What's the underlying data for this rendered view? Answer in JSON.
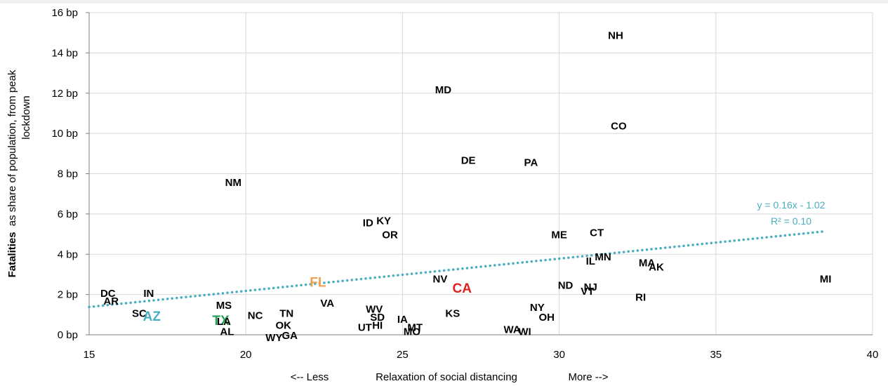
{
  "chart_data": {
    "type": "scatter",
    "xlim": [
      15,
      40
    ],
    "ylim": [
      0,
      16
    ],
    "x_ticks": [
      "15",
      "20",
      "25",
      "30",
      "35",
      "40"
    ],
    "y_ticks": [
      "0 bp",
      "2 bp",
      "4 bp",
      "6 bp",
      "8 bp",
      "10 bp",
      "12 bp",
      "14 bp",
      "16 bp"
    ],
    "grid": true,
    "ylabel": {
      "bold": "Fatalities",
      "rest": "as share of population, from peak",
      "line2": "lockdown"
    },
    "xlabel": {
      "left": "<-- Less",
      "center": "Relaxation of social distancing",
      "right": "More -->"
    },
    "trendline": {
      "slope": 0.16,
      "intercept": -1.02,
      "x_range": [
        15,
        38.5
      ],
      "equation": "y = 0.16x - 1.02",
      "r2": "R² = 0.10",
      "color": "#4aaec0",
      "style": "dotted"
    },
    "points": [
      {
        "label": "NH",
        "x": 31.8,
        "y": 14.9
      },
      {
        "label": "MD",
        "x": 26.3,
        "y": 12.2
      },
      {
        "label": "CO",
        "x": 31.9,
        "y": 10.4
      },
      {
        "label": "DE",
        "x": 27.1,
        "y": 8.7
      },
      {
        "label": "PA",
        "x": 29.1,
        "y": 8.6
      },
      {
        "label": "NM",
        "x": 19.6,
        "y": 7.6
      },
      {
        "label": "ID",
        "x": 23.9,
        "y": 5.6
      },
      {
        "label": "KY",
        "x": 24.4,
        "y": 5.7
      },
      {
        "label": "OR",
        "x": 24.6,
        "y": 5.0
      },
      {
        "label": "ME",
        "x": 30.0,
        "y": 5.0
      },
      {
        "label": "CT",
        "x": 31.2,
        "y": 5.1
      },
      {
        "label": "IL",
        "x": 31.0,
        "y": 3.7
      },
      {
        "label": "MN",
        "x": 31.4,
        "y": 3.9
      },
      {
        "label": "MA",
        "x": 32.8,
        "y": 3.6
      },
      {
        "label": "AK",
        "x": 33.1,
        "y": 3.4
      },
      {
        "label": "MI",
        "x": 38.5,
        "y": 2.8
      },
      {
        "label": "FL",
        "x": 22.3,
        "y": 2.6,
        "color": "#f0a050",
        "large": true
      },
      {
        "label": "NV",
        "x": 26.2,
        "y": 2.8
      },
      {
        "label": "CA",
        "x": 26.9,
        "y": 2.3,
        "color": "#e02020",
        "large": true
      },
      {
        "label": "ND",
        "x": 30.2,
        "y": 2.5
      },
      {
        "label": "NJ",
        "x": 31.0,
        "y": 2.4
      },
      {
        "label": "VT",
        "x": 30.9,
        "y": 2.2
      },
      {
        "label": "RI",
        "x": 32.6,
        "y": 1.9
      },
      {
        "label": "DC",
        "x": 15.6,
        "y": 2.1
      },
      {
        "label": "AR",
        "x": 15.7,
        "y": 1.7
      },
      {
        "label": "IN",
        "x": 16.9,
        "y": 2.1
      },
      {
        "label": "SC",
        "x": 16.6,
        "y": 1.1
      },
      {
        "label": "AZ",
        "x": 17.0,
        "y": 0.9,
        "color": "#4aaec0",
        "large": true
      },
      {
        "label": "MS",
        "x": 19.3,
        "y": 1.5
      },
      {
        "label": "TX",
        "x": 19.2,
        "y": 0.7,
        "color": "#20a050",
        "large": true
      },
      {
        "label": "LA",
        "x": 19.3,
        "y": 0.7
      },
      {
        "label": "AL",
        "x": 19.4,
        "y": 0.2
      },
      {
        "label": "NC",
        "x": 20.3,
        "y": 1.0
      },
      {
        "label": "TN",
        "x": 21.3,
        "y": 1.1
      },
      {
        "label": "OK",
        "x": 21.2,
        "y": 0.5
      },
      {
        "label": "WY",
        "x": 20.9,
        "y": -0.1
      },
      {
        "label": "GA",
        "x": 21.4,
        "y": 0.0
      },
      {
        "label": "VA",
        "x": 22.6,
        "y": 1.6
      },
      {
        "label": "WV",
        "x": 24.1,
        "y": 1.3
      },
      {
        "label": "SD",
        "x": 24.2,
        "y": 0.9
      },
      {
        "label": "UT",
        "x": 23.8,
        "y": 0.4
      },
      {
        "label": "HI",
        "x": 24.2,
        "y": 0.5
      },
      {
        "label": "IA",
        "x": 25.0,
        "y": 0.8
      },
      {
        "label": "MT",
        "x": 25.4,
        "y": 0.4
      },
      {
        "label": "MO",
        "x": 25.3,
        "y": 0.2
      },
      {
        "label": "KS",
        "x": 26.6,
        "y": 1.1
      },
      {
        "label": "NY",
        "x": 29.3,
        "y": 1.4
      },
      {
        "label": "OH",
        "x": 29.6,
        "y": 0.9
      },
      {
        "label": "WA",
        "x": 28.5,
        "y": 0.3
      },
      {
        "label": "WI",
        "x": 28.9,
        "y": 0.2
      }
    ]
  }
}
